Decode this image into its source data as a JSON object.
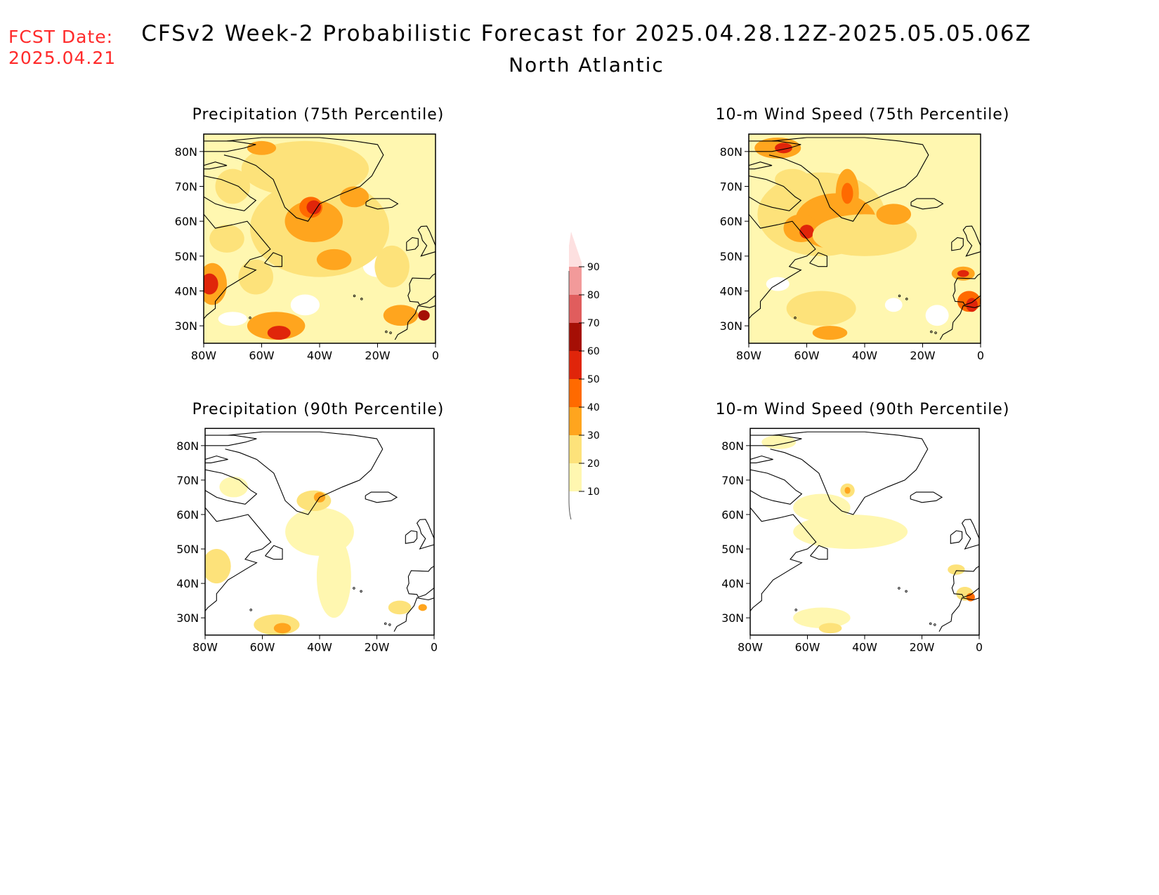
{
  "header": {
    "fcst_label": "FCST Date:",
    "fcst_date": "2025.04.21",
    "title": "CFSv2 Week-2 Probabilistic Forecast for 2025.04.28.12Z-2025.05.05.06Z",
    "region": "North Atlantic"
  },
  "panels": [
    {
      "title": "Precipitation (75th Percentile)"
    },
    {
      "title": "10-m Wind Speed (75th Percentile)"
    },
    {
      "title": "Precipitation (90th Percentile)"
    },
    {
      "title": "10-m Wind Speed (90th Percentile)"
    }
  ],
  "axes": {
    "lat_labels": [
      "80N",
      "70N",
      "60N",
      "50N",
      "40N",
      "30N"
    ],
    "lon_labels": [
      "80W",
      "60W",
      "40W",
      "20W",
      "0"
    ]
  },
  "colorbar": {
    "levels": [
      "10",
      "20",
      "30",
      "40",
      "50",
      "60",
      "70",
      "80",
      "90"
    ],
    "colors": [
      "#fff7b0",
      "#fde27a",
      "#ffa51e",
      "#ff6a00",
      "#e0250a",
      "#a50f05",
      "#e05d5d",
      "#f29a9a",
      "#fde0e0"
    ]
  }
}
